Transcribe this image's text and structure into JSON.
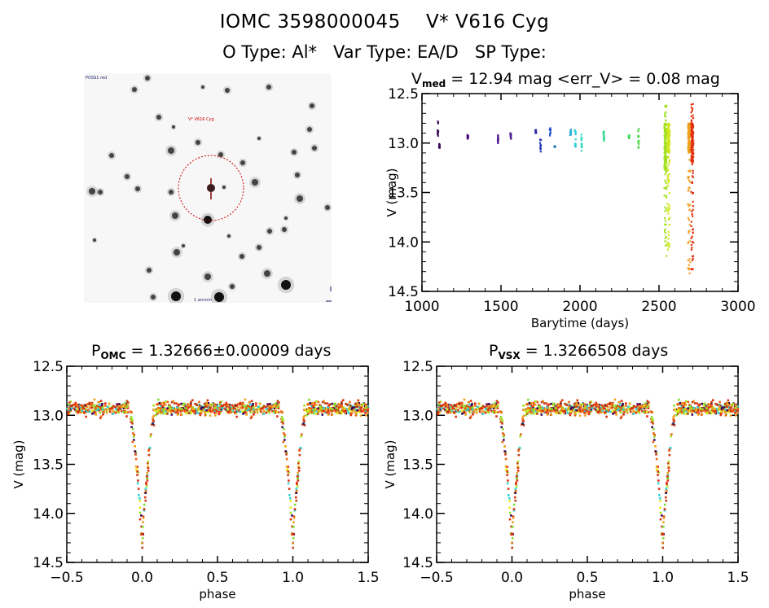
{
  "header": {
    "line1": "IOMC 3598000045    V* V616 Cyg",
    "line2": "O Type: Al*   Var Type: EA/D   SP Type:"
  },
  "finder_chart": {
    "top_left_label": "POSS1 red",
    "target_label": "V* V616 Cyg",
    "bottom_label": "1 arcmin",
    "circle_color": "#cc0000",
    "marker_color": "#800000"
  },
  "chart_data": [
    {
      "id": "lightcurve",
      "type": "scatter",
      "title_main": "V",
      "title_sub": "med",
      "title_rest": " = 12.94 mag <err_V> = 0.08 mag",
      "xlabel": "Barytime (days)",
      "ylabel": "V (mag)",
      "xlim": [
        1000,
        3000
      ],
      "ylim": [
        14.5,
        12.5
      ],
      "xticks": [
        "1000",
        "1500",
        "2000",
        "2500",
        "3000"
      ],
      "yticks": [
        "12.5",
        "13.0",
        "13.5",
        "14.0",
        "14.5"
      ],
      "grid": false,
      "clusters": [
        {
          "x": 1100,
          "ymin": 12.76,
          "ymax": 12.95,
          "color": "#3b0a5a"
        },
        {
          "x": 1110,
          "ymin": 13.0,
          "ymax": 13.05,
          "color": "#3b0a5a"
        },
        {
          "x": 1290,
          "ymin": 12.9,
          "ymax": 12.97,
          "color": "#4b1080"
        },
        {
          "x": 1480,
          "ymin": 12.92,
          "ymax": 13.0,
          "color": "#4b148c"
        },
        {
          "x": 1560,
          "ymin": 12.9,
          "ymax": 12.97,
          "color": "#4a1890"
        },
        {
          "x": 1720,
          "ymin": 12.85,
          "ymax": 12.92,
          "color": "#2a28a0"
        },
        {
          "x": 1750,
          "ymin": 12.95,
          "ymax": 13.09,
          "color": "#2838b0"
        },
        {
          "x": 1810,
          "ymin": 12.84,
          "ymax": 12.93,
          "color": "#2050c8"
        },
        {
          "x": 1840,
          "ymin": 13.03,
          "ymax": 13.04,
          "color": "#2080b0"
        },
        {
          "x": 1940,
          "ymin": 12.86,
          "ymax": 12.92,
          "color": "#30b0d8"
        },
        {
          "x": 1970,
          "ymin": 12.83,
          "ymax": 13.08,
          "color": "#30d0d8"
        },
        {
          "x": 2010,
          "ymin": 12.9,
          "ymax": 13.12,
          "color": "#30d8c0"
        },
        {
          "x": 2150,
          "ymin": 12.88,
          "ymax": 12.98,
          "color": "#30d890"
        },
        {
          "x": 2310,
          "ymin": 12.92,
          "ymax": 12.95,
          "color": "#40d860"
        },
        {
          "x": 2370,
          "ymin": 12.85,
          "ymax": 13.05,
          "color": "#50d850"
        },
        {
          "x": 2540,
          "ymin": 12.6,
          "ymax": 14.2,
          "color": "#a0e020",
          "dense": [
            12.8,
            13.3
          ]
        },
        {
          "x": 2560,
          "ymin": 12.8,
          "ymax": 14.1,
          "color": "#d0e820",
          "dense": [
            12.8,
            13.1
          ]
        },
        {
          "x": 2690,
          "ymin": 12.8,
          "ymax": 14.35,
          "color": "#f0a020",
          "dense": [
            12.8,
            13.1
          ]
        },
        {
          "x": 2710,
          "ymin": 12.58,
          "ymax": 14.3,
          "color": "#e03010",
          "dense": [
            12.8,
            13.2
          ]
        }
      ]
    },
    {
      "id": "phase-omc",
      "type": "scatter",
      "title_main": "P",
      "title_sub": "OMC",
      "title_rest": " = 1.32666±0.00009 days",
      "xlabel": "phase",
      "ylabel": "V (mag)",
      "xlim": [
        -0.5,
        1.5
      ],
      "ylim": [
        14.5,
        12.5
      ],
      "xticks": [
        "−0.5",
        "0.0",
        "0.5",
        "1.0",
        "1.5"
      ],
      "yticks": [
        "12.5",
        "13.0",
        "13.5",
        "14.0",
        "14.5"
      ],
      "grid": false,
      "model": {
        "baseline": 12.93,
        "primary_min_phase": 0.0,
        "primary_depth": 14.3,
        "eclipse_halfwidth": 0.09,
        "scatter": 0.08
      },
      "point_colors": [
        "#e03010",
        "#f06010",
        "#f0a020",
        "#a0e020",
        "#80e030",
        "#c04010",
        "#e8e820",
        "#3b0a5a",
        "#30d0d8"
      ]
    },
    {
      "id": "phase-vsx",
      "type": "scatter",
      "title_main": "P",
      "title_sub": "VSX",
      "title_rest": " = 1.3266508 days",
      "xlabel": "phase",
      "ylabel": "V (mag)",
      "xlim": [
        -0.5,
        1.5
      ],
      "ylim": [
        14.5,
        12.5
      ],
      "xticks": [
        "−0.5",
        "0.0",
        "0.5",
        "1.0",
        "1.5"
      ],
      "yticks": [
        "12.5",
        "13.0",
        "13.5",
        "14.0",
        "14.5"
      ],
      "grid": false,
      "model": {
        "baseline": 12.93,
        "primary_min_phase": 0.0,
        "primary_depth": 14.3,
        "eclipse_halfwidth": 0.09,
        "scatter": 0.08
      },
      "point_colors": [
        "#e03010",
        "#f06010",
        "#f0a020",
        "#a0e020",
        "#80e030",
        "#c04010",
        "#e8e820",
        "#3b0a5a",
        "#30d0d8"
      ]
    }
  ]
}
